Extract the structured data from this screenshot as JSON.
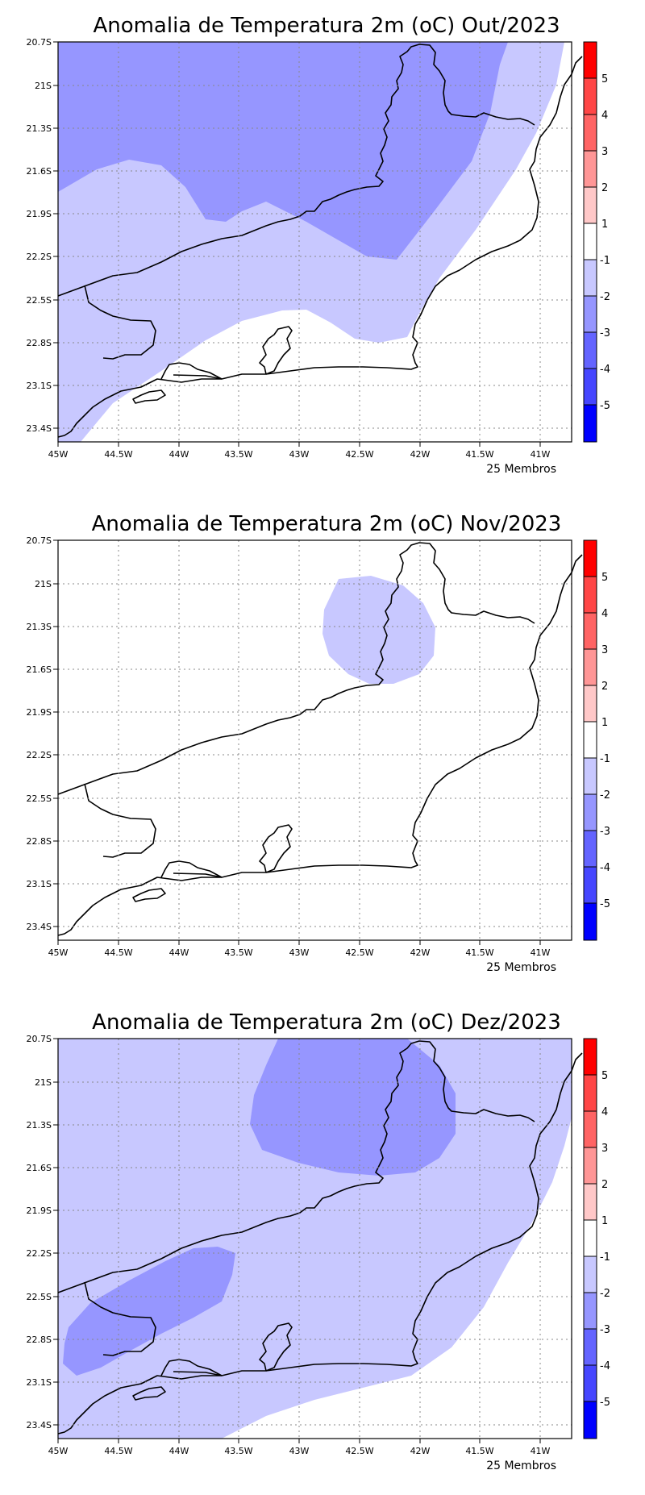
{
  "members_label": "25 Membros",
  "lon_ticks": [
    "45W",
    "44.5W",
    "44W",
    "43.5W",
    "43W",
    "42.5W",
    "42W",
    "41.5W",
    "41W"
  ],
  "lat_ticks": [
    "20.7S",
    "21S",
    "21.3S",
    "21.6S",
    "21.9S",
    "22.2S",
    "22.5S",
    "22.8S",
    "23.1S",
    "23.4S"
  ],
  "colorbar": {
    "labels": [
      "5",
      "4",
      "3",
      "2",
      "1",
      "-1",
      "-2",
      "-3",
      "-4",
      "-5"
    ],
    "colors": [
      "#ff0000",
      "#ff4646",
      "#ff6464",
      "#ff9696",
      "#ffc8c8",
      "#ffffff",
      "#c8c8ff",
      "#9696ff",
      "#6464ff",
      "#4646ff",
      "#0000ff"
    ]
  },
  "panels": [
    {
      "title": "Anomalia de Temperatura 2m (oC) Out/2023",
      "chart_data": {
        "type": "map-contour",
        "month": "Out/2023",
        "unit": "oC",
        "dominant_class": "-2 to -1",
        "regions": [
          {
            "class": "-3 to -2",
            "area": "northern half and northwest"
          },
          {
            "class": "-2 to -1",
            "area": "band across centre and southwest"
          },
          {
            "class": "-1 to 1",
            "area": "coast near Rio de Janeiro and east"
          }
        ]
      }
    },
    {
      "title": "Anomalia de Temperatura 2m (oC) Nov/2023",
      "chart_data": {
        "type": "map-contour",
        "month": "Nov/2023",
        "unit": "oC",
        "dominant_class": "-1 to 1",
        "regions": [
          {
            "class": "-2 to -1",
            "area": "small patch near 42.4W 21.5S"
          }
        ]
      }
    },
    {
      "title": "Anomalia de Temperatura 2m (oC) Dez/2023",
      "chart_data": {
        "type": "map-contour",
        "month": "Dez/2023",
        "unit": "oC",
        "dominant_class": "-2 to -1",
        "regions": [
          {
            "class": "-3 to -2",
            "area": "north near 42.5W 21.2S"
          },
          {
            "class": "-3 to -2",
            "area": "southwest near 44.3W 22.9S"
          },
          {
            "class": "-1 to 1",
            "area": "southeast ocean corner"
          }
        ]
      }
    }
  ]
}
